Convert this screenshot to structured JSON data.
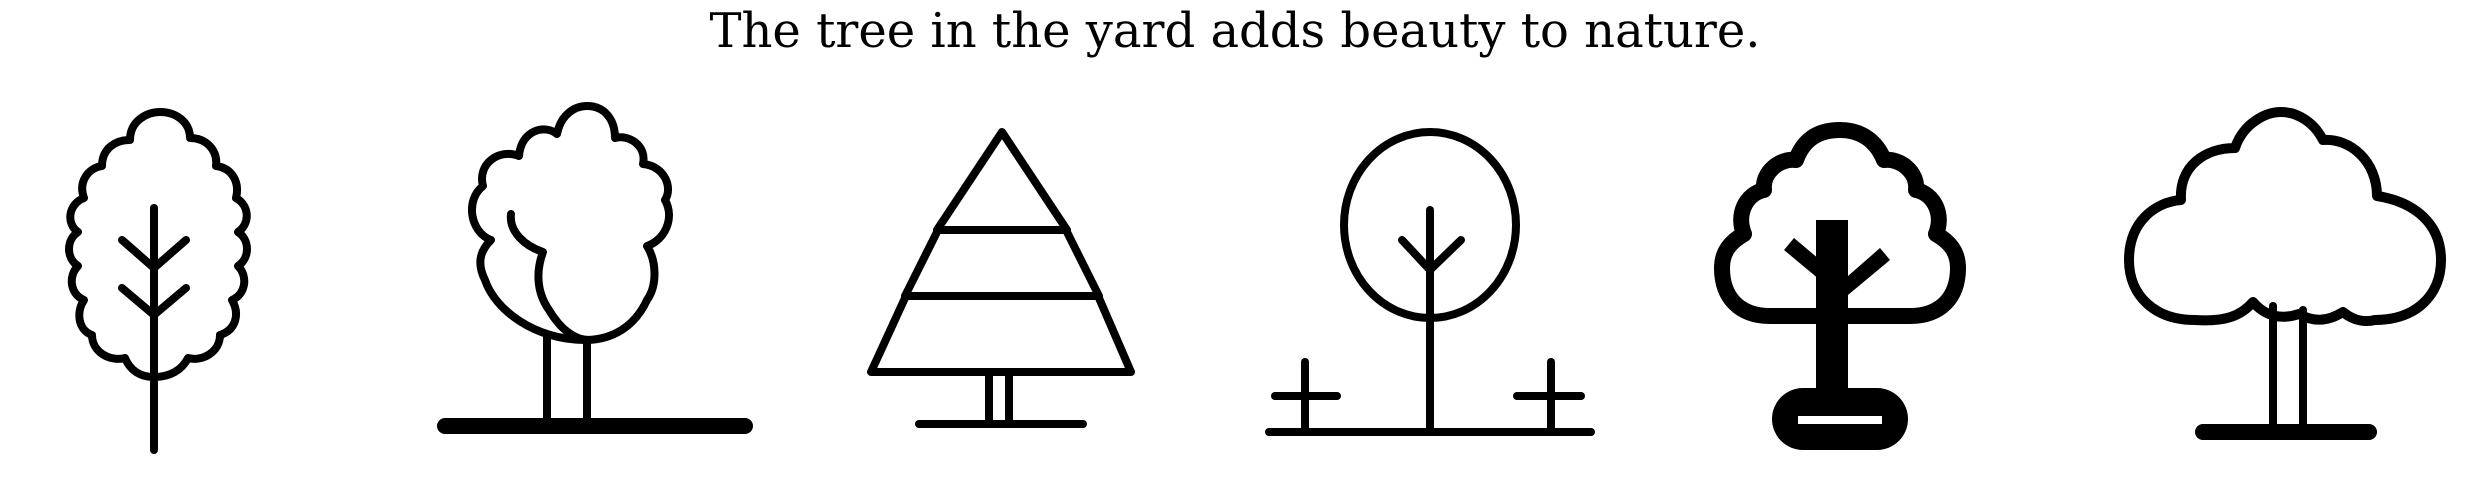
{
  "caption": "The tree in the yard adds beauty to nature.",
  "icons": [
    {
      "name": "leafy-tree-icon"
    },
    {
      "name": "double-canopy-tree-icon"
    },
    {
      "name": "pine-tree-icon"
    },
    {
      "name": "round-tree-with-grass-icon"
    },
    {
      "name": "bold-cloud-tree-icon"
    },
    {
      "name": "cloud-tree-icon"
    }
  ],
  "colors": {
    "ink": "#000000",
    "background": "#ffffff"
  }
}
